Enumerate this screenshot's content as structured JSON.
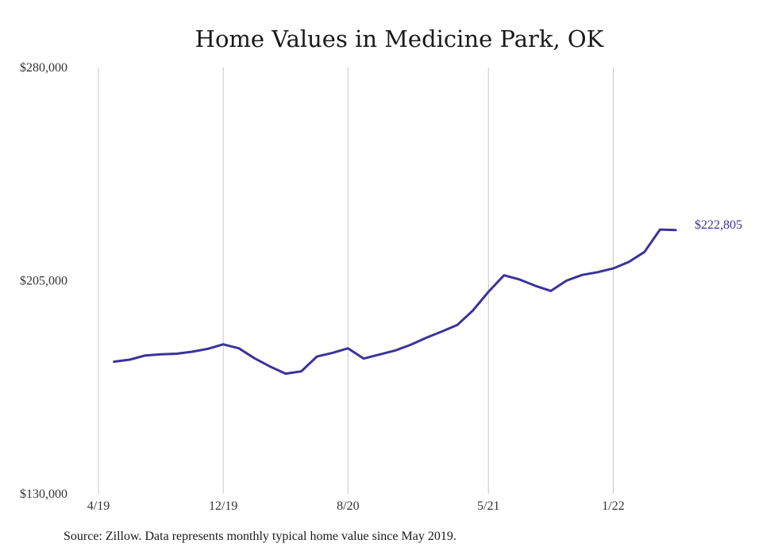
{
  "chart_data": {
    "type": "line",
    "title": "Home Values in Medicine Park, OK",
    "x": [
      "2019-05",
      "2019-06",
      "2019-07",
      "2019-08",
      "2019-09",
      "2019-10",
      "2019-11",
      "2019-12",
      "2020-01",
      "2020-02",
      "2020-03",
      "2020-04",
      "2020-05",
      "2020-06",
      "2020-07",
      "2020-08",
      "2020-09",
      "2020-10",
      "2020-11",
      "2020-12",
      "2021-01",
      "2021-02",
      "2021-03",
      "2021-04",
      "2021-05",
      "2021-06",
      "2021-07",
      "2021-08",
      "2021-09",
      "2021-10",
      "2021-11",
      "2021-12",
      "2022-01",
      "2022-02",
      "2022-03",
      "2022-04",
      "2022-05"
    ],
    "x_range": [
      "2019-04",
      "2022-08"
    ],
    "x_ticks": [
      {
        "x": "2019-04",
        "label": "4/19"
      },
      {
        "x": "2019-12",
        "label": "12/19"
      },
      {
        "x": "2020-08",
        "label": "8/20"
      },
      {
        "x": "2021-05",
        "label": "5/21"
      },
      {
        "x": "2022-01",
        "label": "1/22"
      }
    ],
    "series": [
      {
        "values": [
          176500,
          177200,
          178700,
          179100,
          179300,
          180000,
          181000,
          182600,
          181200,
          177700,
          174800,
          172300,
          173100,
          178300,
          179600,
          181200,
          177600,
          179000,
          180400,
          182400,
          184900,
          187100,
          189400,
          194500,
          201100,
          206900,
          205400,
          203200,
          201400,
          205000,
          207000,
          208000,
          209300,
          211600,
          215100,
          223000,
          222805
        ]
      }
    ],
    "end_label": "$222,805",
    "ylim": [
      130000,
      280000
    ],
    "y_ticks": [
      {
        "y": 130000,
        "label": "$130,000"
      },
      {
        "y": 205000,
        "label": "$205,000"
      },
      {
        "y": 280000,
        "label": "$280,000"
      }
    ],
    "grid": "vertical",
    "line_color": "#3b3399",
    "xlabel": "",
    "ylabel": ""
  },
  "source_note": "Source: Zillow. Data represents monthly typical home value since May 2019."
}
